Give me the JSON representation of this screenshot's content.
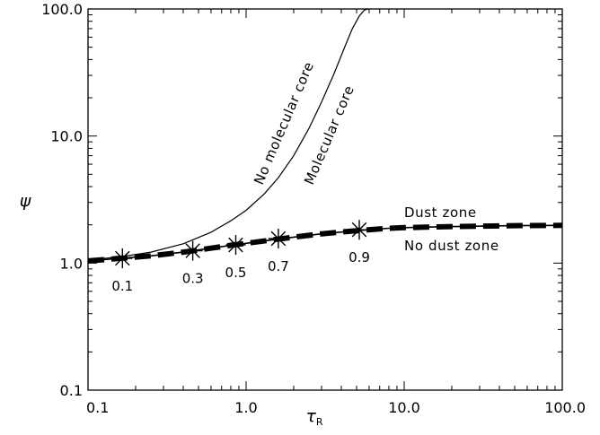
{
  "chart_data": {
    "type": "line",
    "title": "",
    "xlabel": "τ",
    "xlabel_sub": "R",
    "ylabel": "ψ",
    "xscale": "log",
    "yscale": "log",
    "xlim": [
      0.1,
      100.0
    ],
    "ylim": [
      0.1,
      100.0
    ],
    "xticks": [
      "0.1",
      "1.0",
      "10.0",
      "100.0"
    ],
    "yticks": [
      "0.1",
      "1.0",
      "10.0",
      "100.0"
    ],
    "grid": false,
    "legend": "none",
    "series": [
      {
        "style": "thin-solid",
        "x": [
          0.1,
          0.16,
          0.25,
          0.4,
          0.6,
          0.8,
          1.0,
          1.3,
          1.6,
          2.0,
          2.5,
          3.0,
          3.6,
          4.2,
          4.7,
          5.2,
          5.6,
          5.9
        ],
        "y": [
          1.06,
          1.12,
          1.22,
          1.42,
          1.75,
          2.15,
          2.6,
          3.5,
          4.7,
          7.0,
          11.5,
          18.5,
          31.0,
          50.0,
          70.0,
          88.0,
          98.0,
          100.0
        ]
      },
      {
        "style": "solid-over-thick-dashed",
        "x": [
          0.1,
          0.16,
          0.25,
          0.4,
          0.6,
          0.8,
          1.0,
          1.5,
          2.0,
          3.0,
          5.0,
          8.0,
          10.0,
          20.0,
          50.0,
          100.0
        ],
        "y": [
          1.04,
          1.09,
          1.14,
          1.22,
          1.31,
          1.38,
          1.43,
          1.53,
          1.6,
          1.7,
          1.8,
          1.88,
          1.9,
          1.94,
          1.97,
          1.98
        ]
      }
    ],
    "markers": [
      {
        "label": "0.1",
        "x": 0.165,
        "y": 1.09
      },
      {
        "label": "0.3",
        "x": 0.46,
        "y": 1.25
      },
      {
        "label": "0.5",
        "x": 0.86,
        "y": 1.39
      },
      {
        "label": "0.7",
        "x": 1.6,
        "y": 1.56
      },
      {
        "label": "0.9",
        "x": 5.2,
        "y": 1.83
      }
    ],
    "annotations": {
      "no_molecular_core": "No molecular core",
      "molecular_core": "Molecular core",
      "dust_zone": "Dust zone",
      "no_dust_zone": "No dust zone"
    }
  }
}
